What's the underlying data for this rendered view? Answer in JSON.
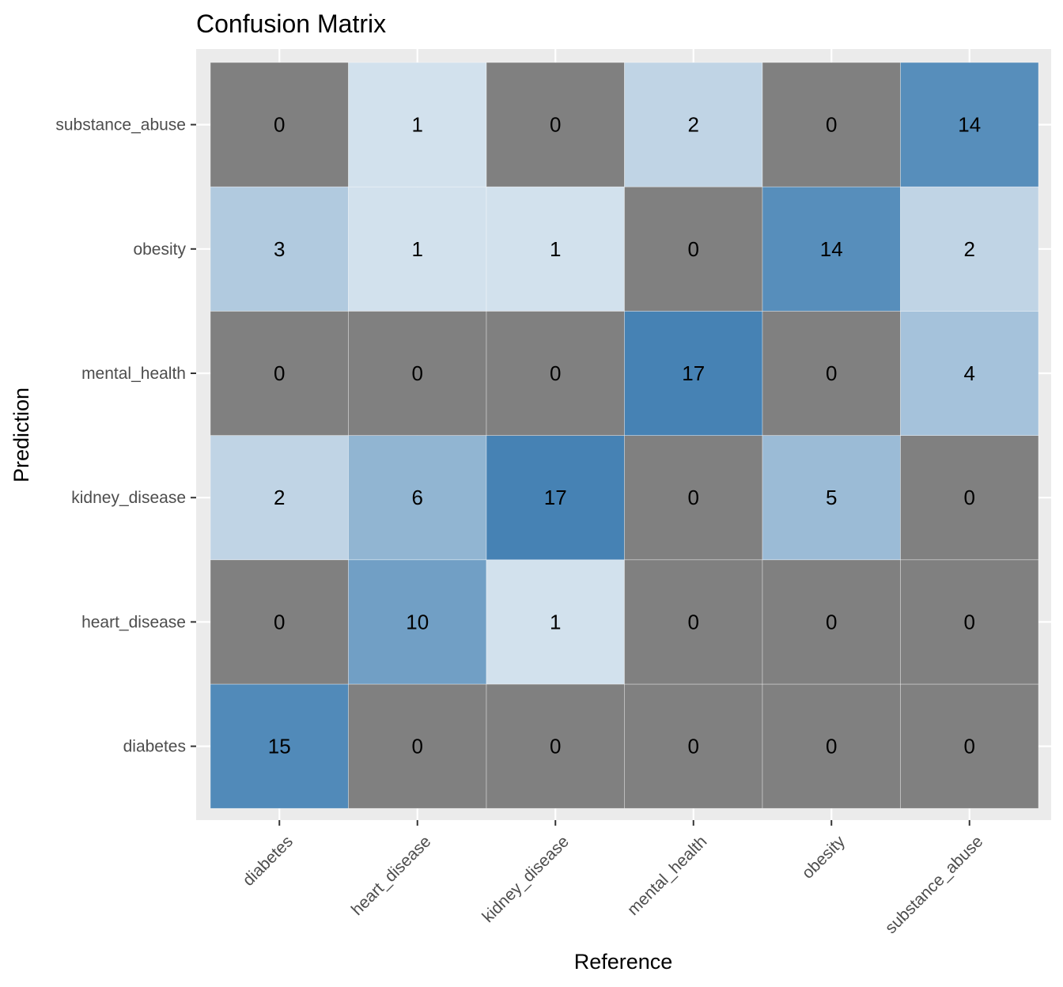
{
  "chart_data": {
    "type": "heatmap",
    "title": "Confusion Matrix",
    "xlabel": "Reference",
    "ylabel": "Prediction",
    "x_categories": [
      "diabetes",
      "heart_disease",
      "kidney_disease",
      "mental_health",
      "obesity",
      "substance_abuse"
    ],
    "y_categories": [
      "diabetes",
      "heart_disease",
      "kidney_disease",
      "mental_health",
      "obesity",
      "substance_abuse"
    ],
    "values": [
      [
        15,
        0,
        0,
        0,
        0,
        0
      ],
      [
        0,
        10,
        1,
        0,
        0,
        0
      ],
      [
        2,
        6,
        17,
        0,
        5,
        0
      ],
      [
        0,
        0,
        0,
        17,
        0,
        4
      ],
      [
        3,
        1,
        1,
        0,
        14,
        2
      ],
      [
        0,
        1,
        0,
        2,
        0,
        14
      ]
    ],
    "colors": {
      "panel_background": "#ebebeb",
      "gridline": "#ffffff",
      "zero_cell": "#808080",
      "low": "#ffffff",
      "high": "#4682b4",
      "tick_text": "#4d4d4d",
      "tick_mark": "#333333"
    },
    "grid": true,
    "legend": "none"
  }
}
